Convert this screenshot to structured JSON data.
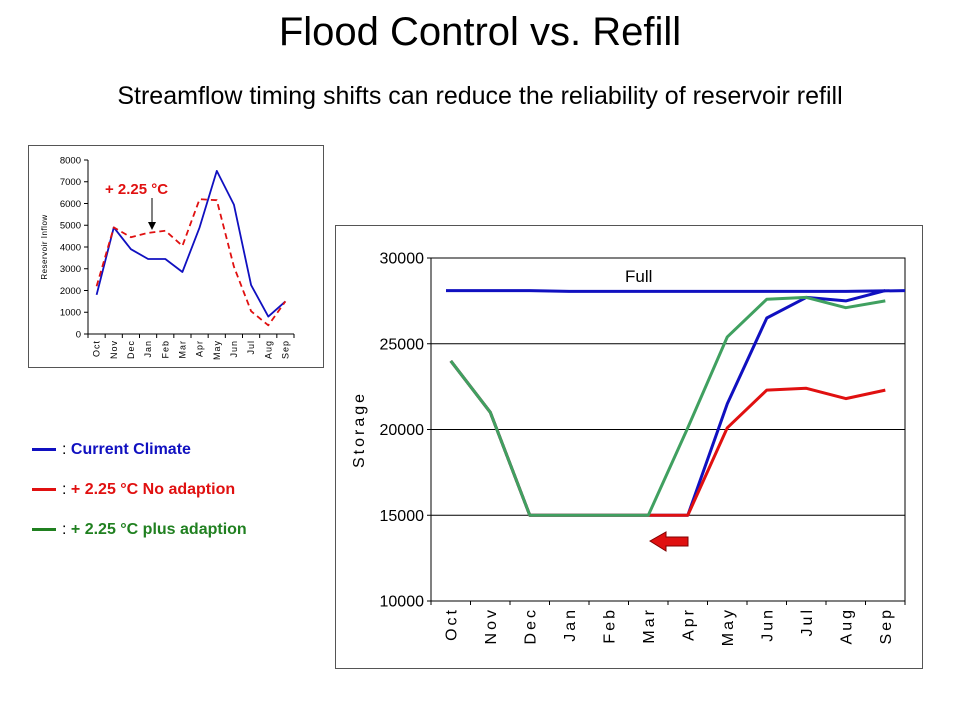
{
  "title": "Flood Control vs. Refill",
  "subtitle": "Streamflow timing shifts can reduce the reliability of reservoir refill",
  "legend": {
    "separator": ":",
    "items": [
      {
        "label": "Current Climate",
        "color": "#1010c0"
      },
      {
        "label": "+ 2.25 °C No adaption",
        "color": "#e01010"
      },
      {
        "label": "+ 2.25 °C plus adaption",
        "color": "#208020"
      }
    ]
  },
  "chart_data": [
    {
      "type": "line",
      "ylabel": "Reservoir Inflow",
      "ylim": [
        0,
        8000
      ],
      "yticks": [
        "0",
        "1000",
        "2000",
        "3000",
        "4000",
        "5000",
        "6000",
        "7000",
        "8000"
      ],
      "categories": [
        "Oct",
        "Nov",
        "Dec",
        "Jan",
        "Feb",
        "Mar",
        "Apr",
        "May",
        "Jun",
        "Jul",
        "Aug",
        "Sep"
      ],
      "annotation": "+ 2.25 °C",
      "series": [
        {
          "values": [
            1800,
            4900,
            3900,
            3450,
            3450,
            2850,
            4900,
            7500,
            5950,
            2250,
            800,
            1500
          ],
          "color": "#1010c0",
          "style": "solid"
        },
        {
          "values": [
            2200,
            4900,
            4450,
            4650,
            4750,
            4050,
            6200,
            6150,
            3100,
            1050,
            400,
            1500
          ],
          "color": "#e01010",
          "style": "dashed"
        }
      ]
    },
    {
      "type": "line",
      "ylabel": "Storage",
      "ylim": [
        10000,
        30000
      ],
      "yticks": [
        "10000",
        "15000",
        "20000",
        "25000",
        "30000"
      ],
      "categories": [
        "Oct",
        "Nov",
        "Dec",
        "Jan",
        "Feb",
        "Mar",
        "Apr",
        "May",
        "Jun",
        "Jul",
        "Aug",
        "Sep"
      ],
      "annotation": "Full",
      "grid": true,
      "series": [
        {
          "values": [
            28100,
            28100,
            28100,
            28050,
            28050,
            28050,
            28050,
            28050,
            28050,
            28050,
            28050,
            28100
          ],
          "color": "#1010c0",
          "style": "full-line"
        },
        {
          "values": [
            24000,
            21000,
            15000,
            15000,
            15000,
            15000,
            15000,
            21500,
            26500,
            27700,
            27500,
            28100
          ],
          "color": "#1010c0",
          "style": "solid"
        },
        {
          "values": [
            24000,
            21000,
            15000,
            15000,
            15000,
            15000,
            15000,
            20100,
            22300,
            22400,
            21800,
            22300
          ],
          "color": "#e01010",
          "style": "solid"
        },
        {
          "values": [
            24000,
            21000,
            15000,
            15000,
            15000,
            15000,
            20100,
            25400,
            27600,
            27700,
            27100,
            27500
          ],
          "color": "#40a060",
          "style": "solid"
        }
      ]
    }
  ]
}
